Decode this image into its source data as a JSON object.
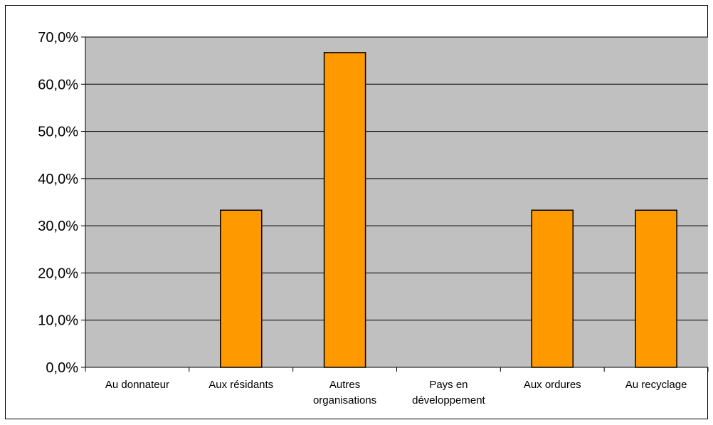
{
  "chart_data": {
    "type": "bar",
    "categories": [
      [
        "Au donnateur"
      ],
      [
        "Aux résidants"
      ],
      [
        "Autres",
        "organisations"
      ],
      [
        "Pays en",
        "développement"
      ],
      [
        "Aux ordures"
      ],
      [
        "Au recyclage"
      ]
    ],
    "values": [
      0,
      33.3,
      66.7,
      0,
      33.3,
      33.3
    ],
    "title": "",
    "xlabel": "",
    "ylabel": "",
    "ylim": [
      0,
      70
    ],
    "yticks": [
      0,
      10,
      20,
      30,
      40,
      50,
      60,
      70
    ],
    "ytick_labels": [
      "0,0%",
      "10,0%",
      "20,0%",
      "30,0%",
      "40,0%",
      "50,0%",
      "60,0%",
      "70,0%"
    ],
    "grid": true,
    "legend": "none",
    "colors": {
      "plot_background": "#C0C0C0",
      "bar_fill": "#FF9900",
      "bar_stroke": "#000000",
      "gridline": "#000000"
    }
  }
}
